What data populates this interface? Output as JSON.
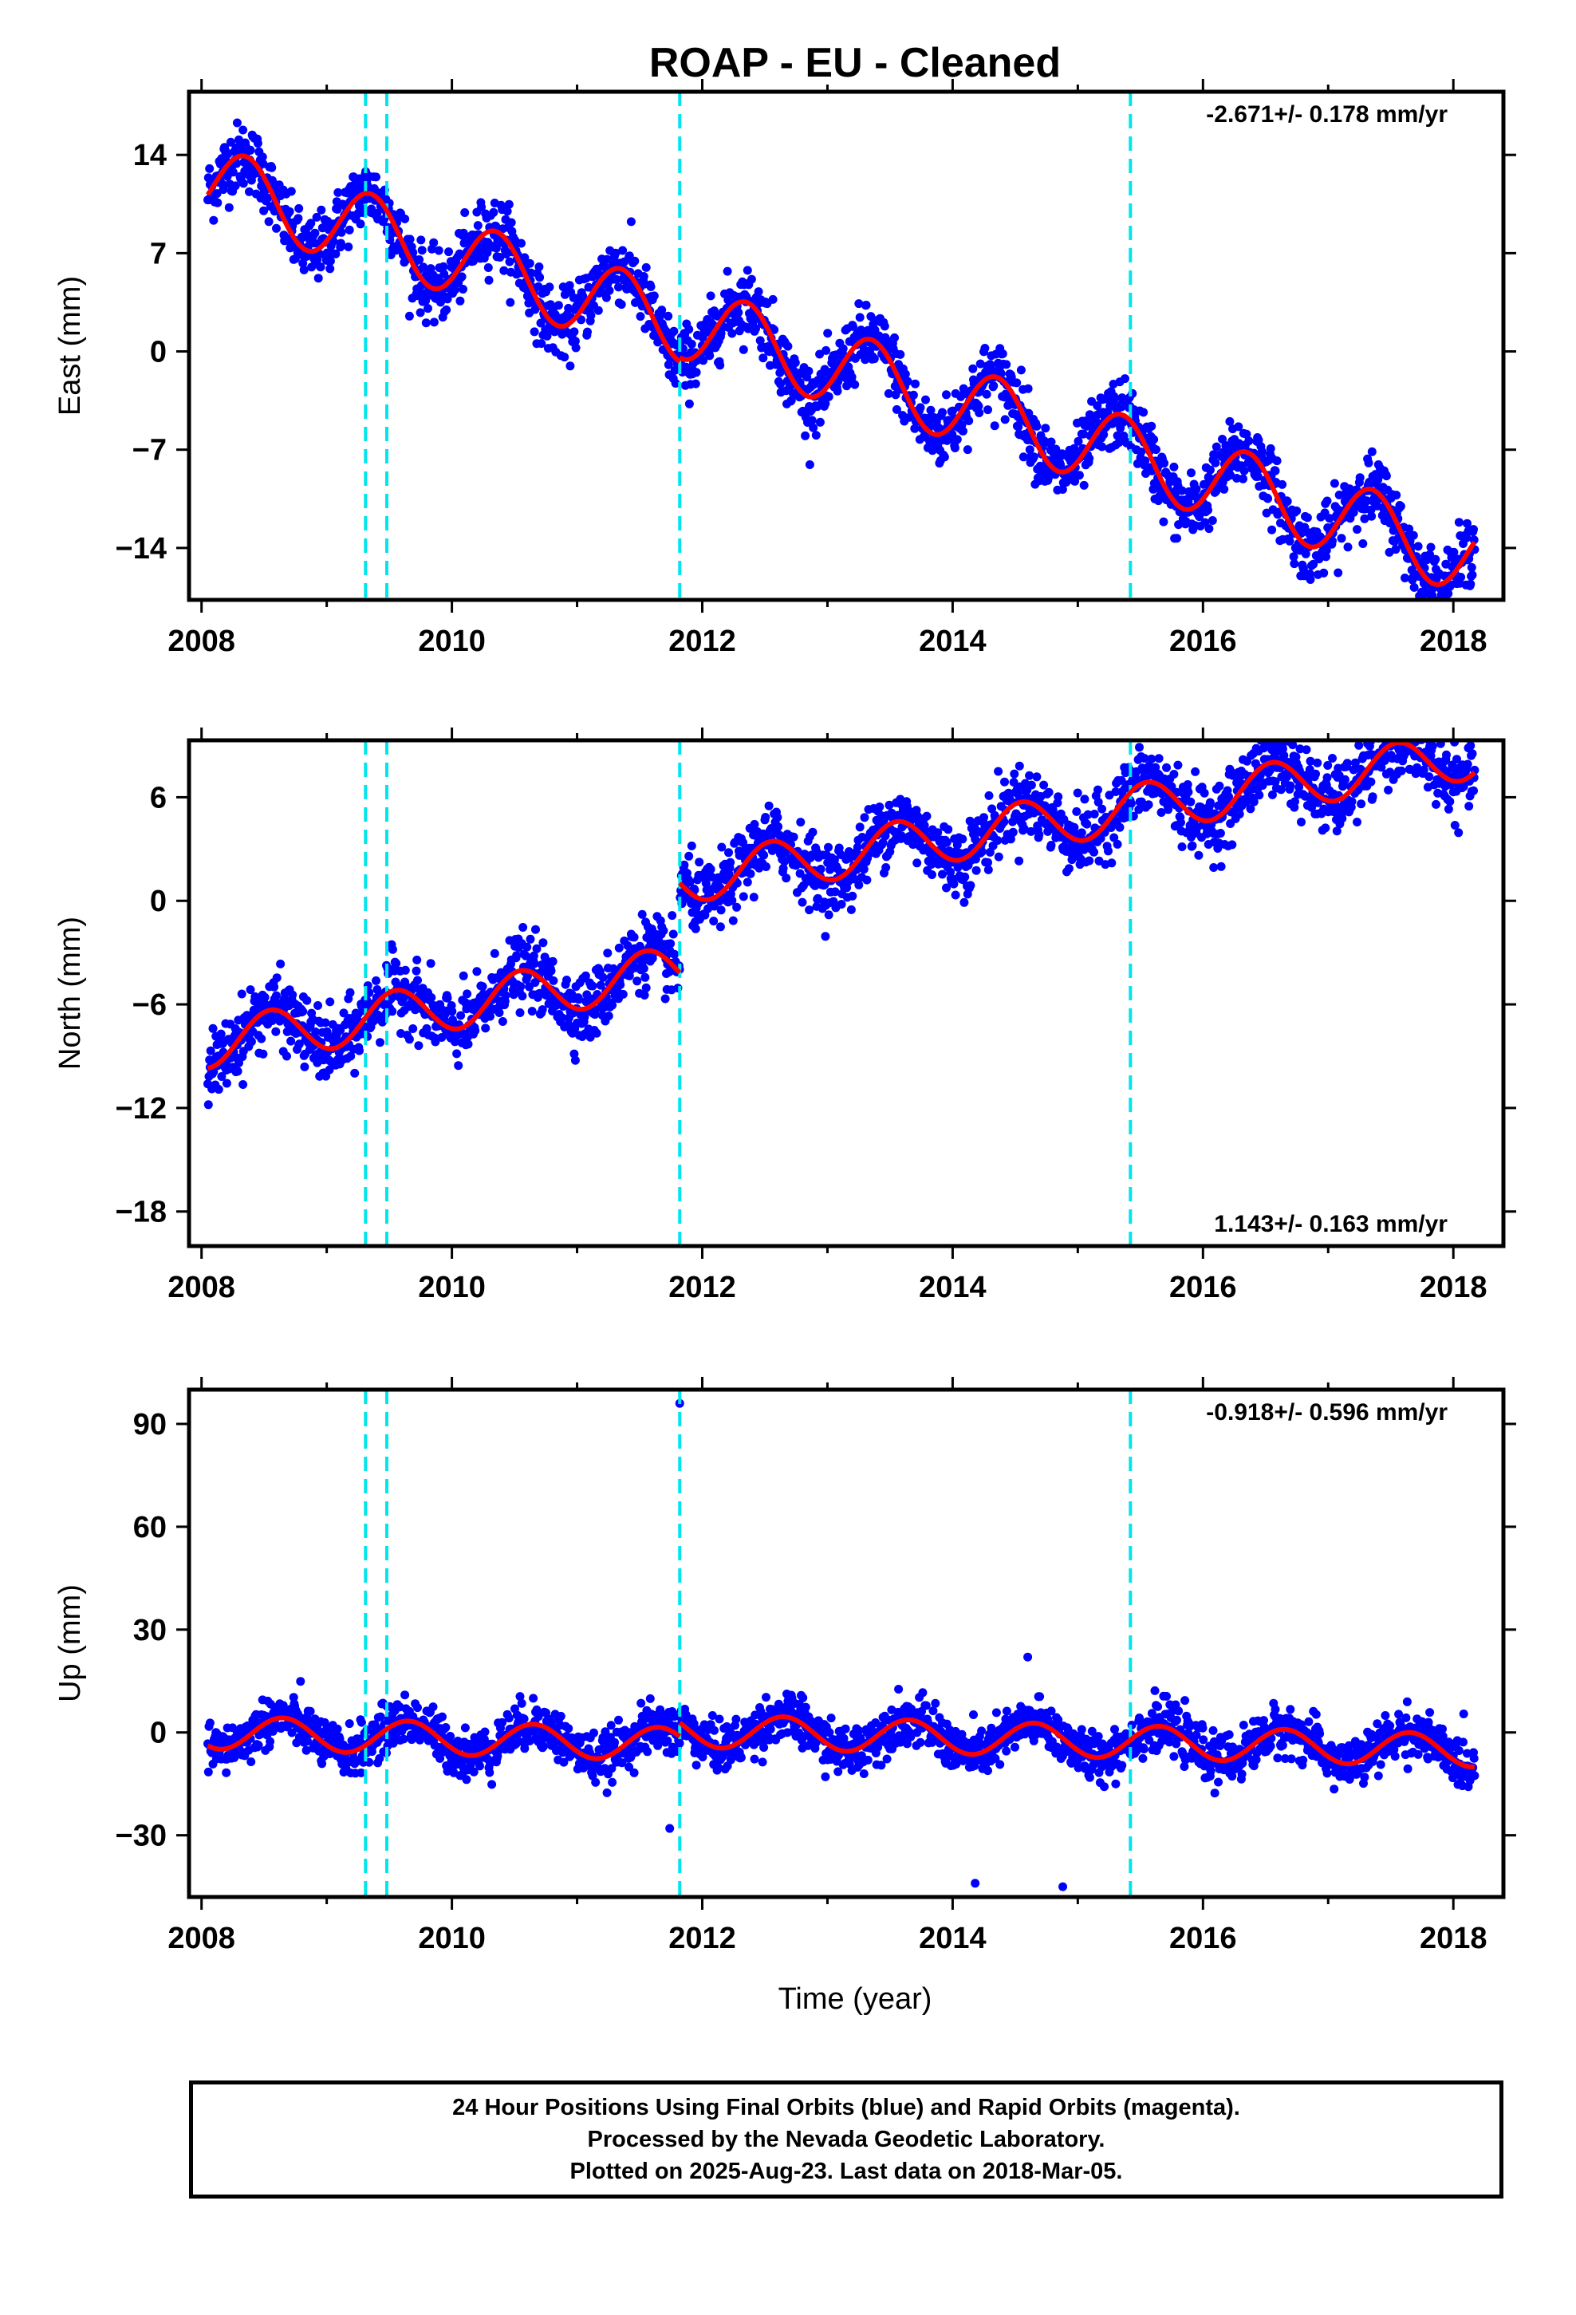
{
  "title": "ROAP  - EU - Cleaned",
  "xlabel": "Time (year)",
  "caption": {
    "line1": "24 Hour Positions Using Final Orbits (blue) and Rapid Orbits (magenta).",
    "line2": "Processed by the Nevada Geodetic Laboratory.",
    "line3": "Plotted on 2025-Aug-23. Last data on 2018-Mar-05."
  },
  "colors": {
    "points": "#0000ff",
    "model": "#ff0000",
    "steps": "#00e5ee",
    "frame": "#000000"
  },
  "chart_data": [
    {
      "type": "scatter",
      "component": "east",
      "ylabel": "East (mm)",
      "rate_label": "-2.671+/- 0.178 mm/yr",
      "rate_position": "top-right",
      "xlim": [
        2007.9,
        2018.4
      ],
      "ylim": [
        -17.7,
        18.5
      ],
      "xticks": [
        2008,
        2010,
        2012,
        2014,
        2016,
        2018
      ],
      "yticks": [
        14,
        7,
        0,
        -7,
        -14
      ],
      "ytick_labels": [
        "14",
        "7",
        "0",
        "−7",
        "−14"
      ],
      "step_epochs": [
        2009.31,
        2009.48,
        2011.82,
        2015.42
      ],
      "model": {
        "segments": [
          [
            2008.05,
            2011.82
          ],
          [
            2011.82,
            2018.17
          ]
        ],
        "offsets": [
          12.0,
          12.3
        ],
        "rate": -2.671,
        "amplitude": 2.7,
        "phase_peak": 0.35
      },
      "series": [
        {
          "name": "Final Orbits",
          "noise": 1.2,
          "n": 2200
        }
      ]
    },
    {
      "type": "scatter",
      "component": "north",
      "ylabel": "North (mm)",
      "rate_label": "1.143+/- 0.163 mm/yr",
      "rate_position": "bottom-right",
      "xlim": [
        2007.9,
        2018.4
      ],
      "ylim": [
        -20.0,
        9.3
      ],
      "xticks": [
        2008,
        2010,
        2012,
        2014,
        2016,
        2018
      ],
      "yticks": [
        6,
        0,
        -6,
        -12,
        -18
      ],
      "ytick_labels": [
        "6",
        "0",
        "−6",
        "−12",
        "−18"
      ],
      "step_epochs": [
        2009.31,
        2009.48,
        2011.82,
        2015.42
      ],
      "model": {
        "segments": [
          [
            2008.05,
            2011.82
          ],
          [
            2011.82,
            2018.17
          ]
        ],
        "offsets": [
          -8.3,
          -3.1
        ],
        "rate": 1.143,
        "amplitude": 1.4,
        "phase_peak": 0.55
      },
      "series": [
        {
          "name": "Final Orbits",
          "noise": 1.0,
          "n": 2200
        }
      ]
    },
    {
      "type": "scatter",
      "component": "up",
      "ylabel": "Up (mm)",
      "rate_label": "-0.918+/- 0.596 mm/yr",
      "rate_position": "top-right",
      "xlim": [
        2007.9,
        2018.4
      ],
      "ylim": [
        -48.0,
        100.0
      ],
      "xticks": [
        2008,
        2010,
        2012,
        2014,
        2016,
        2018
      ],
      "yticks": [
        90,
        60,
        30,
        0,
        -30
      ],
      "ytick_labels": [
        "90",
        "60",
        "30",
        "0",
        "−30"
      ],
      "step_epochs": [
        2009.31,
        2009.48,
        2011.82,
        2015.42
      ],
      "model": {
        "segments": [
          [
            2008.05,
            2011.82
          ],
          [
            2011.82,
            2018.17
          ]
        ],
        "offsets": [
          0.0,
          4.0
        ],
        "rate": -0.918,
        "amplitude": 4.8,
        "phase_peak": 0.65
      },
      "outliers": [
        [
          2011.82,
          96
        ],
        [
          2014.18,
          -44
        ],
        [
          2014.88,
          -45
        ],
        [
          2011.74,
          -28
        ],
        [
          2014.6,
          22
        ]
      ],
      "series": [
        {
          "name": "Final Orbits",
          "noise": 3.5,
          "n": 2200
        }
      ]
    }
  ]
}
